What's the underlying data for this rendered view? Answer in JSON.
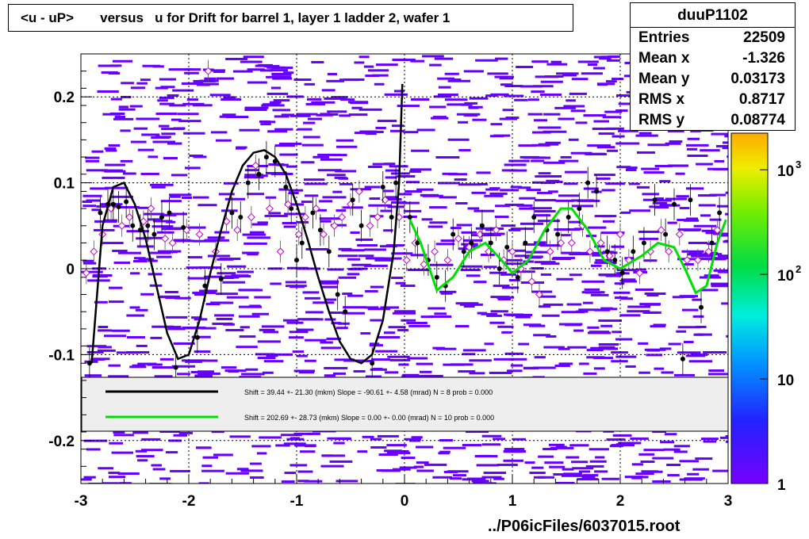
{
  "title": "<u - uP>       versus   u for Drift for barrel 1, layer 1 ladder 2, wafer 1",
  "stats": {
    "name": "duuP1102",
    "rows": [
      {
        "label": "Entries",
        "value": "22509"
      },
      {
        "label": "Mean x",
        "value": "-1.326"
      },
      {
        "label": "Mean y",
        "value": "0.03173"
      },
      {
        "label": "RMS x",
        "value": "0.8717"
      },
      {
        "label": "RMS y",
        "value": "0.08774"
      }
    ]
  },
  "footer": "../P06icFiles/6037015.root",
  "chart_data": {
    "type": "scatter",
    "xlim": [
      -3,
      3
    ],
    "ylim": [
      -0.25,
      0.25
    ],
    "x_ticks": [
      "-3",
      "-2",
      "-1",
      "0",
      "1",
      "2",
      "3"
    ],
    "y_ticks": [
      "-0.2",
      "-0.1",
      "0",
      "0.1",
      "0.2"
    ],
    "grid": true,
    "colorbar": {
      "scale": "log",
      "labels": [
        "1",
        "10",
        "10",
        "10"
      ],
      "exponents": [
        "",
        "",
        "2",
        "3"
      ]
    },
    "colors": {
      "fit1": "#000000",
      "fit2": "#00e000",
      "markers": "#cc00cc",
      "cells": "#6600ff"
    },
    "legend": {
      "placement": "bottom-inside",
      "entries": [
        {
          "color": "#000000",
          "text": "Shift =    39.44 +- 21.30 (mkm) Slope =   -90.61 +- 4.58 (mrad)  N = 8 prob = 0.000"
        },
        {
          "color": "#00e000",
          "text": "Shift =   202.69 +- 28.73 (mkm) Slope =     0.00 +- 0.00 (mrad)  N = 10 prob = 0.000"
        }
      ]
    },
    "fit_black": [
      [
        -2.9,
        -0.11
      ],
      [
        -2.8,
        0.05
      ],
      [
        -2.7,
        0.095
      ],
      [
        -2.6,
        0.1
      ],
      [
        -2.5,
        0.075
      ],
      [
        -2.4,
        0.035
      ],
      [
        -2.3,
        -0.02
      ],
      [
        -2.2,
        -0.075
      ],
      [
        -2.1,
        -0.105
      ],
      [
        -2.0,
        -0.1
      ],
      [
        -1.9,
        -0.06
      ],
      [
        -1.8,
        -0.005
      ],
      [
        -1.7,
        0.045
      ],
      [
        -1.6,
        0.09
      ],
      [
        -1.5,
        0.12
      ],
      [
        -1.4,
        0.135
      ],
      [
        -1.3,
        0.138
      ],
      [
        -1.2,
        0.13
      ],
      [
        -1.1,
        0.11
      ],
      [
        -1.0,
        0.075
      ],
      [
        -0.9,
        0.035
      ],
      [
        -0.8,
        -0.01
      ],
      [
        -0.7,
        -0.05
      ],
      [
        -0.6,
        -0.085
      ],
      [
        -0.5,
        -0.105
      ],
      [
        -0.4,
        -0.11
      ],
      [
        -0.3,
        -0.1
      ],
      [
        -0.2,
        -0.06
      ],
      [
        -0.1,
        0.02
      ],
      [
        -0.05,
        0.1
      ],
      [
        -0.02,
        0.215
      ]
    ],
    "fit_green": [
      [
        0.05,
        0.057
      ],
      [
        0.15,
        0.03
      ],
      [
        0.3,
        -0.025
      ],
      [
        0.45,
        -0.01
      ],
      [
        0.6,
        0.02
      ],
      [
        0.75,
        0.03
      ],
      [
        0.9,
        0.01
      ],
      [
        1.0,
        -0.005
      ],
      [
        1.15,
        0.01
      ],
      [
        1.3,
        0.045
      ],
      [
        1.45,
        0.07
      ],
      [
        1.55,
        0.07
      ],
      [
        1.7,
        0.045
      ],
      [
        1.85,
        0.01
      ],
      [
        2.0,
        0.0
      ],
      [
        2.2,
        0.015
      ],
      [
        2.35,
        0.03
      ],
      [
        2.5,
        0.025
      ],
      [
        2.6,
        0.0
      ],
      [
        2.7,
        -0.028
      ],
      [
        2.8,
        -0.02
      ],
      [
        2.9,
        0.03
      ],
      [
        2.98,
        0.057
      ]
    ],
    "black_points": [
      [
        -2.92,
        -0.11
      ],
      [
        -2.82,
        0.065
      ],
      [
        -2.75,
        0.075
      ],
      [
        -2.7,
        0.075
      ],
      [
        -2.65,
        0.072
      ],
      [
        -2.58,
        0.078
      ],
      [
        -2.52,
        0.05
      ],
      [
        -2.45,
        0.045
      ],
      [
        -2.38,
        0.05
      ],
      [
        -2.32,
        0.04
      ],
      [
        -2.25,
        0.06
      ],
      [
        -2.18,
        0.065
      ],
      [
        -2.12,
        -0.115
      ],
      [
        -2.05,
        0.048
      ],
      [
        -1.92,
        -0.08
      ],
      [
        -1.85,
        -0.02
      ],
      [
        -1.7,
        -0.012
      ],
      [
        -1.6,
        0.065
      ],
      [
        -1.52,
        0.06
      ],
      [
        -1.45,
        0.1
      ],
      [
        -1.35,
        0.11
      ],
      [
        -1.28,
        0.13
      ],
      [
        -1.2,
        0.125
      ],
      [
        -1.1,
        0.095
      ],
      [
        -1.05,
        0.07
      ],
      [
        -1.0,
        0.01
      ],
      [
        -0.95,
        0.03
      ],
      [
        -0.85,
        0.065
      ],
      [
        -0.78,
        0.045
      ],
      [
        -0.7,
        0.02
      ],
      [
        -0.62,
        -0.03
      ],
      [
        -0.55,
        -0.05
      ],
      [
        -0.48,
        0.08
      ],
      [
        -0.4,
        0.05
      ],
      [
        -0.3,
        -0.11
      ],
      [
        -0.2,
        0.095
      ],
      [
        -0.12,
        0.06
      ],
      [
        -0.08,
        0.1
      ],
      [
        0.05,
        0.06
      ],
      [
        0.12,
        0.03
      ],
      [
        0.22,
        0.01
      ],
      [
        0.3,
        -0.01
      ],
      [
        0.38,
        -0.02
      ],
      [
        0.45,
        0.04
      ],
      [
        0.55,
        0.02
      ],
      [
        0.62,
        0.03
      ],
      [
        0.72,
        0.05
      ],
      [
        0.8,
        0.03
      ],
      [
        0.88,
        0.0
      ],
      [
        0.95,
        0.025
      ],
      [
        1.05,
        -0.01
      ],
      [
        1.12,
        0.03
      ],
      [
        1.2,
        0.06
      ],
      [
        1.32,
        0.045
      ],
      [
        1.42,
        0.04
      ],
      [
        1.52,
        0.06
      ],
      [
        1.62,
        0.07
      ],
      [
        1.7,
        0.1
      ],
      [
        1.78,
        0.09
      ],
      [
        1.88,
        0.02
      ],
      [
        1.95,
        0.01
      ],
      [
        2.02,
        -0.005
      ],
      [
        2.12,
        0.02
      ],
      [
        2.22,
        0.03
      ],
      [
        2.32,
        0.08
      ],
      [
        2.42,
        0.04
      ],
      [
        2.5,
        0.075
      ],
      [
        2.58,
        -0.105
      ],
      [
        2.65,
        0.08
      ],
      [
        2.75,
        -0.045
      ],
      [
        2.85,
        0.03
      ],
      [
        2.92,
        0.065
      ]
    ],
    "magenta_points": [
      [
        -2.95,
        -0.005
      ],
      [
        -2.88,
        0.02
      ],
      [
        -2.8,
        0.04
      ],
      [
        -2.72,
        0.07
      ],
      [
        -2.62,
        0.05
      ],
      [
        -2.55,
        0.06
      ],
      [
        -2.42,
        0.055
      ],
      [
        -2.35,
        0.07
      ],
      [
        -2.22,
        0.035
      ],
      [
        -2.15,
        0.03
      ],
      [
        -2.02,
        0.045
      ],
      [
        -1.9,
        0.04
      ],
      [
        -1.82,
        0.23
      ],
      [
        -1.75,
        0.02
      ],
      [
        -1.65,
        0.055
      ],
      [
        -1.55,
        0.045
      ],
      [
        -1.42,
        0.06
      ],
      [
        -1.38,
        0.12
      ],
      [
        -1.25,
        0.07
      ],
      [
        -1.15,
        0.02
      ],
      [
        -1.08,
        0.075
      ],
      [
        -0.98,
        0.04
      ],
      [
        -0.92,
        0.06
      ],
      [
        -0.82,
        0.07
      ],
      [
        -0.75,
        0.04
      ],
      [
        -0.65,
        0.05
      ],
      [
        -0.58,
        0.06
      ],
      [
        -0.5,
        0.075
      ],
      [
        -0.42,
        0.09
      ],
      [
        -0.32,
        0.05
      ],
      [
        -0.25,
        0.06
      ],
      [
        -0.18,
        0.08
      ],
      [
        -0.05,
        0.06
      ],
      [
        0.02,
        0.01
      ],
      [
        0.1,
        0.03
      ],
      [
        0.18,
        0.005
      ],
      [
        0.28,
        0.02
      ],
      [
        0.4,
        0.01
      ],
      [
        0.5,
        0.035
      ],
      [
        0.6,
        0.025
      ],
      [
        0.7,
        0.04
      ],
      [
        0.78,
        0.02
      ],
      [
        0.85,
        0.045
      ],
      [
        0.92,
        0.01
      ],
      [
        1.0,
        0.02
      ],
      [
        1.08,
        0.0
      ],
      [
        1.18,
        -0.015
      ],
      [
        1.25,
        -0.03
      ],
      [
        1.35,
        0.02
      ],
      [
        1.45,
        0.03
      ],
      [
        1.55,
        0.03
      ],
      [
        1.65,
        0.05
      ],
      [
        1.72,
        0.02
      ],
      [
        1.82,
        0.03
      ],
      [
        1.9,
        0.015
      ],
      [
        2.0,
        0.04
      ],
      [
        2.08,
        0.01
      ],
      [
        2.18,
        -0.005
      ],
      [
        2.28,
        0.02
      ],
      [
        2.38,
        0.045
      ],
      [
        2.45,
        0.02
      ],
      [
        2.55,
        0.04
      ],
      [
        2.62,
        0.01
      ],
      [
        2.72,
        0.01
      ],
      [
        2.82,
        0.02
      ],
      [
        2.9,
        0.045
      ]
    ]
  }
}
